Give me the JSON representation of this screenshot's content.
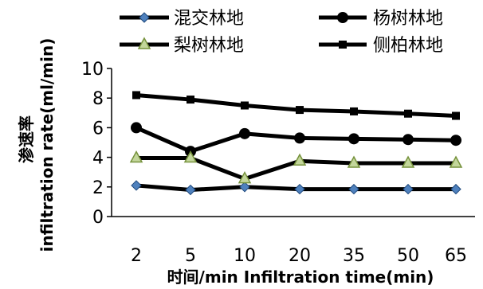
{
  "chart_data": {
    "type": "line",
    "title": "",
    "categories": [
      "2",
      "5",
      "10",
      "20",
      "35",
      "50",
      "65"
    ],
    "xlabel": "时间/min  Infiltration time(min)",
    "ylabel_cn": "渗速率",
    "ylabel_en": "infiltration rate(ml/min)",
    "ylim": [
      0,
      10
    ],
    "yticks": [
      0,
      2,
      4,
      6,
      8,
      10
    ],
    "grid": false,
    "legend_position": "top",
    "series": [
      {
        "name": "混交林地",
        "marker": "diamond",
        "marker_color": "#4F81BD",
        "values": [
          2.1,
          1.8,
          2.0,
          1.85,
          1.85,
          1.85,
          1.85
        ]
      },
      {
        "name": "杨树林地",
        "marker": "circle",
        "marker_color": "#000000",
        "values": [
          6.0,
          4.4,
          5.6,
          5.3,
          5.25,
          5.2,
          5.15
        ]
      },
      {
        "name": "梨树林地",
        "marker": "triangle",
        "marker_color": "#9BBB59",
        "values": [
          3.95,
          3.95,
          2.55,
          3.75,
          3.6,
          3.6,
          3.6
        ]
      },
      {
        "name": "侧柏林地",
        "marker": "square",
        "marker_color": "#000000",
        "values": [
          8.2,
          7.9,
          7.5,
          7.2,
          7.1,
          6.95,
          6.8
        ]
      }
    ]
  }
}
